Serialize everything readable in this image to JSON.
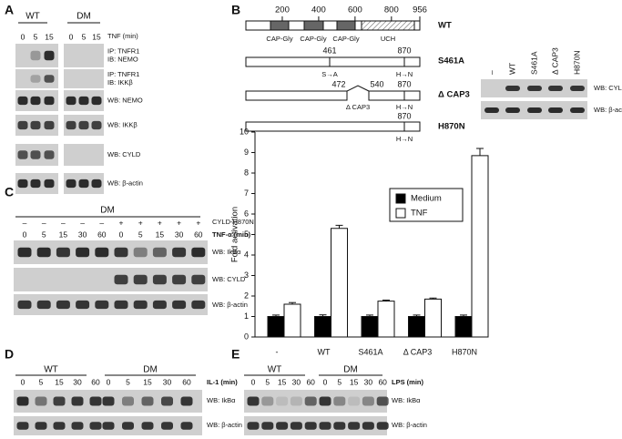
{
  "panels": {
    "A": {
      "letter": "A",
      "groups": [
        "WT",
        "DM"
      ],
      "time_label": "TNF (min)",
      "lanes": [
        "0",
        "5",
        "15",
        "0",
        "5",
        "15"
      ],
      "blots": [
        [
          "IP: TNFR1",
          "IB: NEMO"
        ],
        [
          "IP: TNFR1",
          "IB: IKKβ"
        ],
        [
          "WB: NEMO"
        ],
        [
          "WB: IKKβ"
        ],
        [
          "WB: CYLD"
        ],
        [
          "WB: β-actin"
        ]
      ]
    },
    "B": {
      "letter": "B",
      "ruler_ticks": [
        200,
        400,
        600,
        800,
        956
      ],
      "domains": [
        "CAP-Gly",
        "CAP-Gly",
        "CAP-Gly",
        "UCH"
      ],
      "constructs": [
        {
          "name": "WT"
        },
        {
          "name": "S461A",
          "positions": [
            "461",
            "870"
          ],
          "changes": [
            "S→A",
            "H→N"
          ]
        },
        {
          "name": "Δ CAP3",
          "positions": [
            "472",
            "540",
            "870"
          ],
          "changes": [
            "Δ CAP3",
            "H→N"
          ]
        },
        {
          "name": "H870N",
          "positions": [
            "870"
          ],
          "changes": [
            "H→N"
          ]
        }
      ],
      "blot_lanes": [
        "–",
        "WT",
        "S461A",
        "Δ CAP3",
        "H870N"
      ],
      "blots": [
        "WB: CYLD",
        "WB: β-actin"
      ]
    },
    "C": {
      "letter": "C",
      "group": "DM",
      "transgene": "CYLD-H870N",
      "transgene_marks": [
        "–",
        "–",
        "–",
        "–",
        "–",
        "+",
        "+",
        "+",
        "+",
        "+"
      ],
      "time_label": "TNF-α (min)",
      "lanes": [
        "0",
        "5",
        "15",
        "30",
        "60",
        "0",
        "5",
        "15",
        "30",
        "60"
      ],
      "blots": [
        "WB: IkBα",
        "WB: CYLD",
        "WB: β-actin"
      ]
    },
    "D": {
      "letter": "D",
      "groups": [
        "WT",
        "DM"
      ],
      "time_label": "IL-1 (min)",
      "lanes": [
        "0",
        "5",
        "15",
        "30",
        "60",
        "0",
        "5",
        "15",
        "30",
        "60"
      ],
      "blots": [
        "WB: IkBα",
        "WB: β-actin"
      ]
    },
    "E": {
      "letter": "E",
      "groups": [
        "WT",
        "DM"
      ],
      "time_label": "LPS (min)",
      "lanes": [
        "0",
        "5",
        "15",
        "30",
        "60",
        "0",
        "5",
        "15",
        "30",
        "60"
      ],
      "blots": [
        "WB: IkBα",
        "WB: β-actin"
      ]
    }
  },
  "chart_data": {
    "type": "bar",
    "ylabel": "Fold activation",
    "categories": [
      "-",
      "WT",
      "S461A",
      "Δ CAP3",
      "H870N"
    ],
    "series": [
      {
        "name": "Medium",
        "color": "#000000",
        "values": [
          1.0,
          1.0,
          1.0,
          1.0,
          1.0
        ],
        "errors": [
          0.07,
          0.08,
          0.07,
          0.07,
          0.07
        ]
      },
      {
        "name": "TNF",
        "color": "#ffffff",
        "values": [
          1.6,
          5.3,
          1.75,
          1.85,
          8.85
        ],
        "errors": [
          0.08,
          0.15,
          0.05,
          0.05,
          0.35
        ]
      }
    ],
    "ylim": [
      0,
      10
    ],
    "yticks": [
      0,
      1,
      2,
      3,
      4,
      5,
      6,
      7,
      8,
      9,
      10
    ],
    "legend": "upper right"
  }
}
